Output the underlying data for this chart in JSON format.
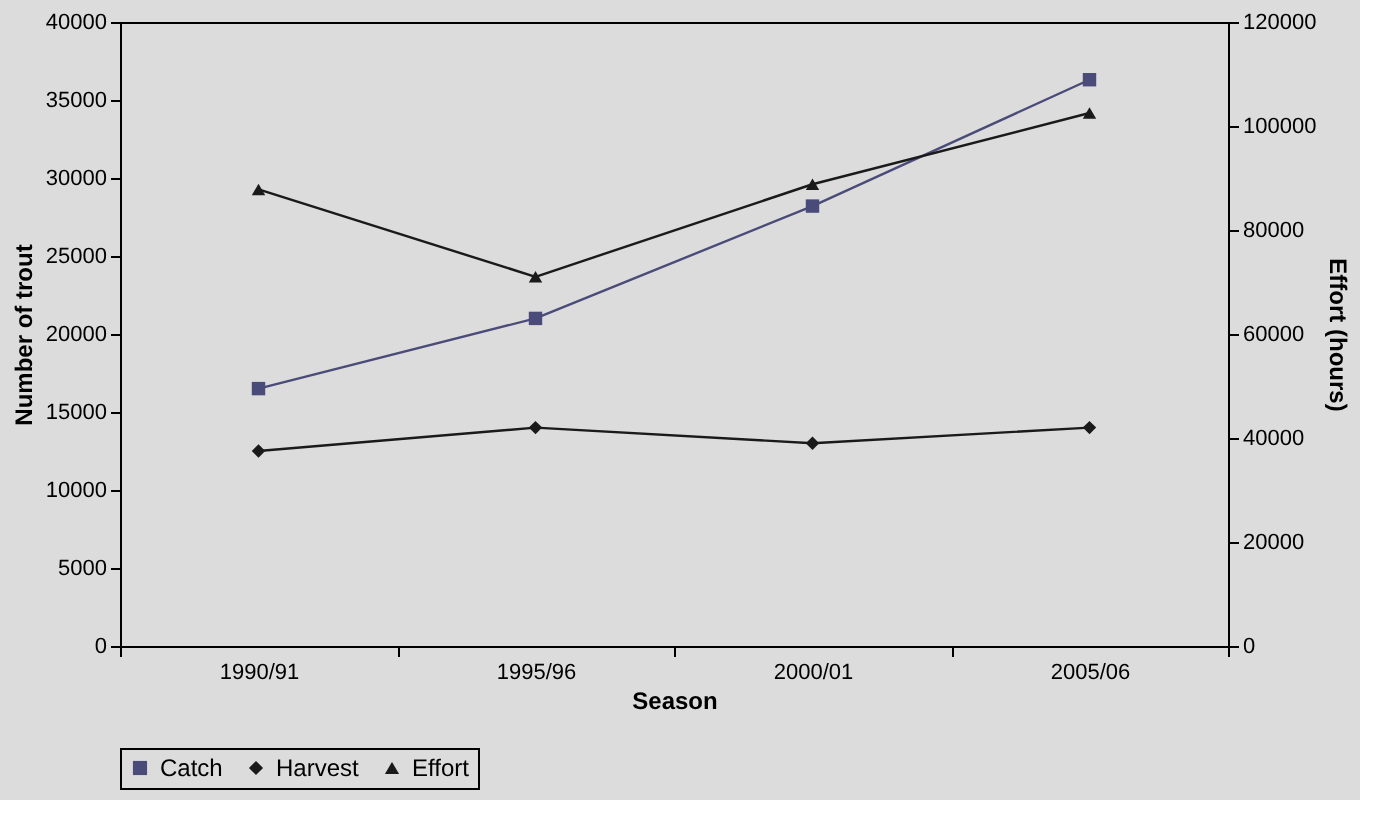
{
  "chart_data": {
    "type": "line",
    "xlabel": "Season",
    "ylabel": "Number of trout",
    "y2label": "Effort (hours)",
    "categories": [
      "1990/91",
      "1995/96",
      "2000/01",
      "2005/06"
    ],
    "series": [
      {
        "name": "Catch",
        "color": "#4b4b7a",
        "marker": "square",
        "values": [
          16500,
          21000,
          28200,
          36300
        ]
      },
      {
        "name": "Harvest",
        "color": "#1a1a1a",
        "marker": "diamond",
        "values": [
          12500,
          14000,
          13000,
          14000
        ]
      },
      {
        "name": "Effort",
        "color": "#1a1a1a",
        "marker": "triangle",
        "axis": "y2",
        "values": [
          87800,
          71000,
          88800,
          102500
        ]
      }
    ],
    "ylim": [
      0,
      40000
    ],
    "yticks": [
      0,
      5000,
      10000,
      15000,
      20000,
      25000,
      30000,
      35000,
      40000
    ],
    "y2lim": [
      0,
      120000
    ],
    "y2ticks": [
      0,
      20000,
      40000,
      60000,
      80000,
      100000,
      120000
    ],
    "grid": false,
    "legend": "bottom",
    "line_style": "solid"
  }
}
